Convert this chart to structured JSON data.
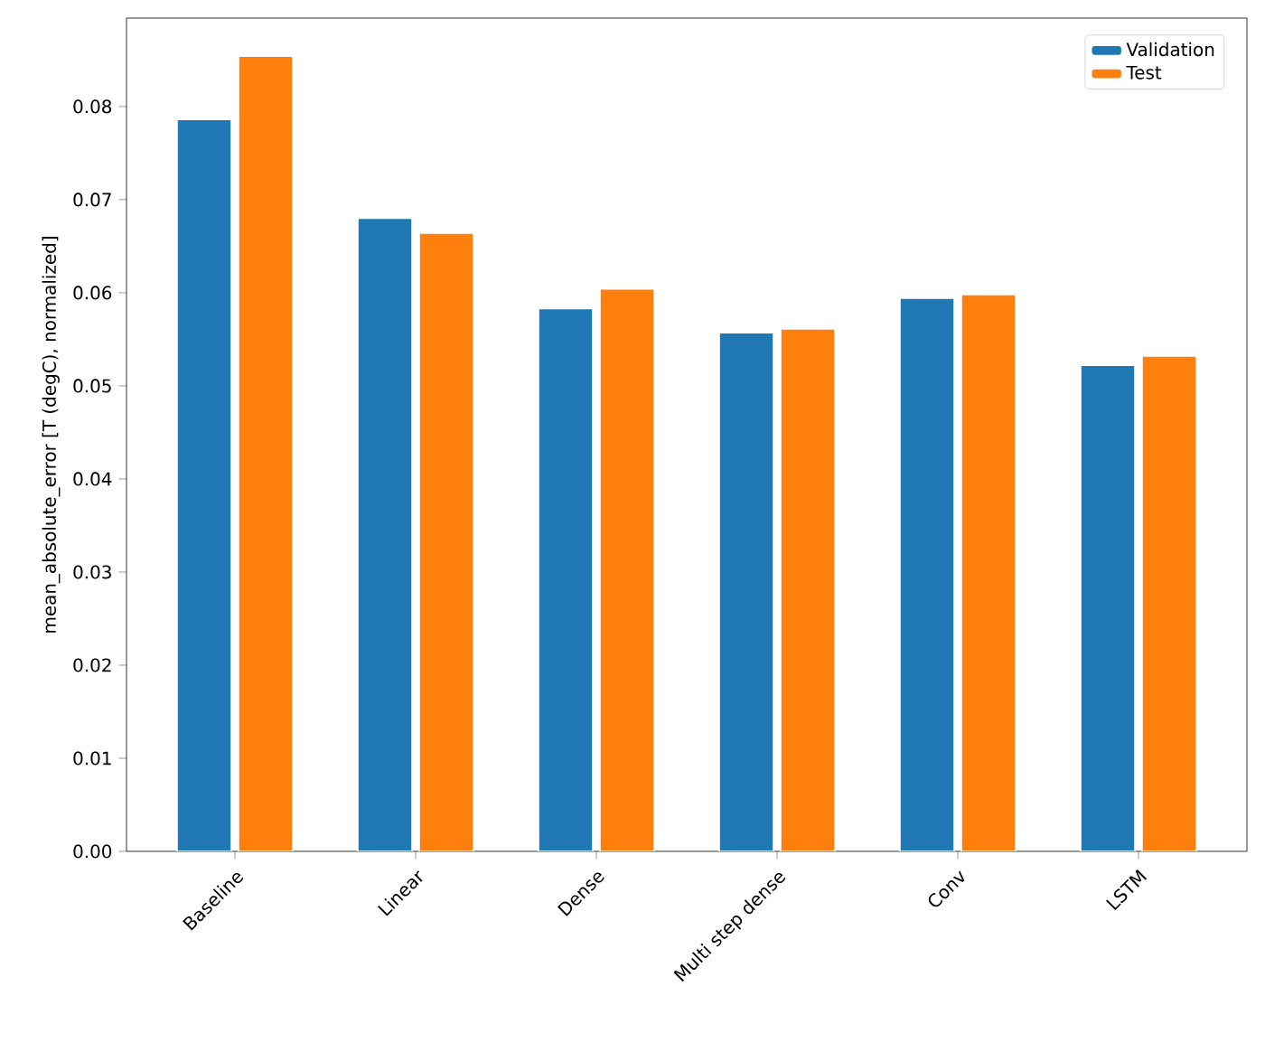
{
  "chart_data": {
    "type": "bar",
    "ylabel": "mean_absolute_error [T (degC), normalized]",
    "categories": [
      "Baseline",
      "Linear",
      "Dense",
      "Multi step dense",
      "Conv",
      "LSTM"
    ],
    "series": [
      {
        "name": "Validation",
        "color": "#1f77b4",
        "values": [
          0.0786,
          0.068,
          0.0583,
          0.0557,
          0.0594,
          0.0522
        ]
      },
      {
        "name": "Test",
        "color": "#ff7f0e",
        "values": [
          0.0854,
          0.0664,
          0.0604,
          0.0561,
          0.0598,
          0.0532
        ]
      }
    ],
    "ylim": [
      0,
      0.0895
    ],
    "yticks": [
      {
        "value": 0,
        "label": "0.00"
      },
      {
        "value": 0.01,
        "label": "0.01"
      },
      {
        "value": 0.02,
        "label": "0.02"
      },
      {
        "value": 0.03,
        "label": "0.03"
      },
      {
        "value": 0.04,
        "label": "0.04"
      },
      {
        "value": 0.05,
        "label": "0.05"
      },
      {
        "value": 0.06,
        "label": "0.06"
      },
      {
        "value": 0.07,
        "label": "0.07"
      },
      {
        "value": 0.08,
        "label": "0.08"
      }
    ],
    "legend": "top right"
  }
}
